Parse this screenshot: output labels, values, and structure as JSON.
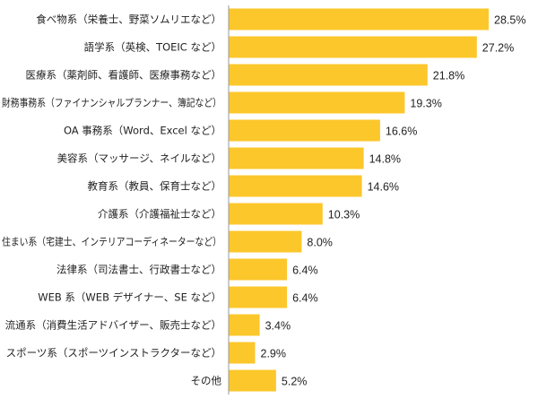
{
  "chart_data": {
    "type": "bar",
    "orientation": "horizontal",
    "title": "",
    "xlabel": "",
    "ylabel": "",
    "xlim": [
      0,
      30
    ],
    "grid": false,
    "legend": "none",
    "value_suffix": "%",
    "bar_color": "#FCC72B",
    "axis_color": "#999999",
    "categories": [
      "食べ物系（栄養士、野菜ソムリエなど）",
      "語学系（英検、TOEIC など）",
      "医療系（薬剤師、看護師、医療事務など）",
      "財務事務系（ファイナンシャルプランナー、簿記など）",
      "OA 事務系（Word、Excel など）",
      "美容系（マッサージ、ネイルなど）",
      "教育系（教員、保育士など）",
      "介護系（介護福祉士など）",
      "住まい系（宅建士、インテリアコーディネーターなど）",
      "法律系（司法書士、行政書士など）",
      "WEB 系（WEB デザイナー、SE など）",
      "流通系（消費生活アドバイザー、販売士など）",
      "スポーツ系（スポーツインストラクターなど）",
      "その他"
    ],
    "values": [
      28.5,
      27.2,
      21.8,
      19.3,
      16.6,
      14.8,
      14.6,
      10.3,
      8.0,
      6.4,
      6.4,
      3.4,
      2.9,
      5.2
    ],
    "value_labels": [
      "28.5%",
      "27.2%",
      "21.8%",
      "19.3%",
      "16.6%",
      "14.8%",
      "14.6%",
      "10.3%",
      "8.0%",
      "6.4%",
      "6.4%",
      "3.4%",
      "2.9%",
      "5.2%"
    ]
  }
}
